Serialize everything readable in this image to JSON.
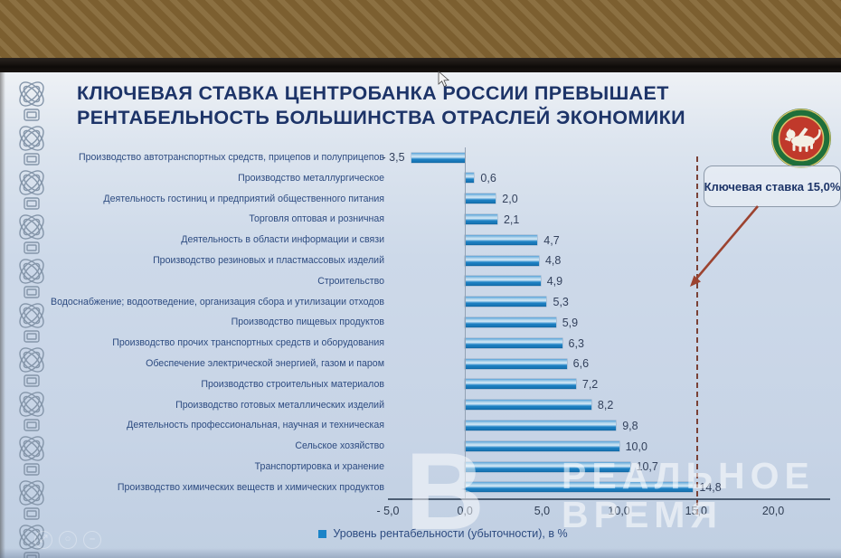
{
  "slide": {
    "title_line1": "КЛЮЧЕВАЯ СТАВКА ЦЕНТРОБАНКА РОССИИ ПРЕВЫШАЕТ",
    "title_line2": "РЕНТАБЕЛЬНОСТЬ БОЛЬШИНСТВА ОТРАСЛЕЙ ЭКОНОМИКИ"
  },
  "annotation": {
    "label": "Ключевая ставка 15,0%",
    "value": 15.0
  },
  "legend": {
    "label": "Уровень рентабельности (убыточности), в %"
  },
  "watermark": {
    "letter": "В",
    "line1": "РЕАЛЬНОЕ",
    "line2": "ВРЕМЯ"
  },
  "icons": {
    "emblem": "tatarstan-coat-of-arms",
    "cursor": "mouse-pointer",
    "viewer": [
      "expand-icon",
      "search-icon",
      "zoom-out-icon"
    ]
  },
  "colors": {
    "bar": "#1b84c8",
    "title_text": "#1d3468",
    "category_text": "#2d4b80",
    "key_rate_dash": "#7a4136",
    "arrow": "#9c4330",
    "slide_background": "#cdd9e9",
    "emblem_green": "#1f6f3a",
    "emblem_red": "#c0392b"
  },
  "chart_data": {
    "type": "bar",
    "orientation": "horizontal",
    "title": "Ключевая ставка Центробанка России превышает рентабельность большинства отраслей экономики",
    "legend_entries": [
      "Уровень рентабельности (убыточности), в %"
    ],
    "legend_position": "bottom",
    "grid": false,
    "xlim": [
      -5.0,
      23.7
    ],
    "x_tick_values": [
      -5,
      0,
      5,
      10,
      15,
      20
    ],
    "x_ticks": [
      "- 5,0",
      "0,0",
      "5,0",
      "10,0",
      "15,0",
      "20,0"
    ],
    "key_rate_line": 15.0,
    "bar_color": "#1b84c8",
    "categories": [
      "Производство автотранспортных средств, прицепов и полуприцепов",
      "Производство металлургическое",
      "Деятельность гостиниц и предприятий общественного питания",
      "Торговля оптовая и розничная",
      "Деятельность в области информации и связи",
      "Производство резиновых и пластмассовых изделий",
      "Строительство",
      "Водоснабжение; водоотведение, организация сбора и утилизации отходов",
      "Производство пищевых продуктов",
      "Производство прочих транспортных средств и оборудования",
      "Обеспечение электрической энергией, газом и паром",
      "Производство строительных материалов",
      "Производство готовых металлических изделий",
      "Деятельность профессиональная, научная и техническая",
      "Сельское хозяйство",
      "Транспортировка и хранение",
      "Производство химических веществ и химических продуктов"
    ],
    "values": [
      -3.5,
      0.6,
      2.0,
      2.1,
      4.7,
      4.8,
      4.9,
      5.3,
      5.9,
      6.3,
      6.6,
      7.2,
      8.2,
      9.8,
      10.0,
      10.7,
      14.8
    ],
    "value_labels": [
      "- 3,5",
      "0,6",
      "2,0",
      "2,1",
      "4,7",
      "4,8",
      "4,9",
      "5,3",
      "5,9",
      "6,3",
      "6,6",
      "7,2",
      "8,2",
      "9,8",
      "10,0",
      "10,7",
      "14,8"
    ]
  }
}
